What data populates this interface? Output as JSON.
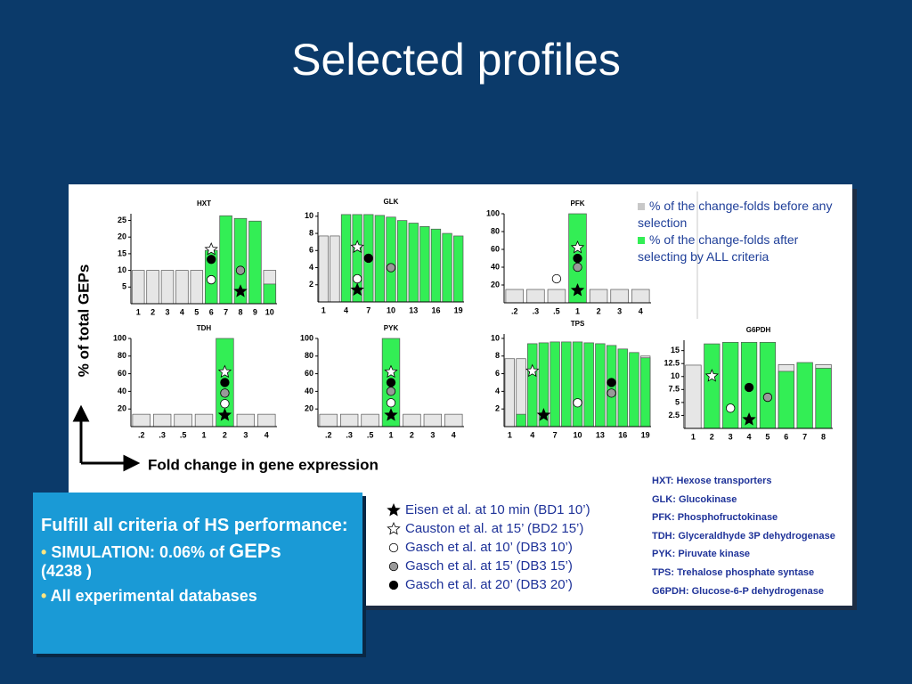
{
  "title": "Selected profiles",
  "y_axis_label": "% of total GEPs",
  "x_axis_label": "Fold change in gene expression",
  "bar_legend": [
    {
      "text": "% of the change-folds before any selection",
      "color": "#c8c8c8"
    },
    {
      "text": "% of the change-folds after selecting by ALL criteria",
      "color": "#33ee55"
    }
  ],
  "marker_legend": [
    {
      "text": "Eisen et al. at 10 min (BD1 10’)",
      "symbol": "star",
      "fill": "#000000"
    },
    {
      "text": "Causton et al. at 15’ (BD2 15’)",
      "symbol": "star",
      "fill": "#ffffff"
    },
    {
      "text": "Gasch et al. at 10’ (DB3 10’)",
      "symbol": "circle",
      "fill": "#ffffff"
    },
    {
      "text": "Gasch et al. at 15’ (DB3 15’)",
      "symbol": "circle",
      "fill": "#999999"
    },
    {
      "text": "Gasch et al. at 20’ (DB3 20’)",
      "symbol": "circle",
      "fill": "#000000"
    }
  ],
  "abbreviations": [
    "HXT: Hexose transporters",
    "GLK: Glucokinase",
    "PFK: Phosphofructokinase",
    "TDH: Glyceraldhyde 3P dehydrogenase",
    "PYK: Piruvate kinase",
    "TPS: Trehalose phosphate syntase",
    "G6PDH: Glucose-6-P dehydrogenase"
  ],
  "summary": {
    "heading": "Fulfill all criteria of HS performance:",
    "bullet": "•",
    "bullets": [
      [
        "SIMULATION: 0.06% of ",
        "GEPs",
        "(4238 )"
      ],
      [
        "All experimental databases"
      ]
    ]
  },
  "chart_data": [
    {
      "type": "bar",
      "title": "HXT",
      "categories": [
        "1",
        "2",
        "3",
        "4",
        "5",
        "6",
        "7",
        "8",
        "9",
        "10"
      ],
      "series": [
        {
          "values": [
            10,
            10,
            10,
            10,
            10,
            null,
            null,
            null,
            null,
            10
          ]
        },
        {
          "values": [
            null,
            null,
            null,
            null,
            null,
            16,
            26.4,
            25.6,
            24.8,
            5.9
          ]
        }
      ],
      "ylim": [
        0,
        27
      ],
      "yticks": [
        5,
        10,
        15,
        20,
        25
      ],
      "markers": [
        {
          "category": 7,
          "value": 3.7
        },
        {
          "category": 5,
          "value": 16.3
        },
        {
          "category": 5,
          "value": 7.2
        },
        {
          "category": 7,
          "value": 10
        },
        {
          "category": 5,
          "value": 13.3
        }
      ]
    },
    {
      "type": "bar",
      "title": "GLK",
      "categories": [
        "1",
        null,
        "4",
        null,
        "7",
        null,
        "10",
        null,
        "13",
        null,
        "16",
        null,
        "19"
      ],
      "series": [
        {
          "values": [
            7.7,
            7.7,
            null,
            null,
            null,
            null,
            null,
            null,
            null,
            null,
            null,
            null,
            null
          ]
        },
        {
          "values": [
            null,
            null,
            10.2,
            10.2,
            10.2,
            10.1,
            9.9,
            9.5,
            9.2,
            8.8,
            8.5,
            8.0,
            7.7
          ]
        }
      ],
      "ylim": [
        0,
        10.5
      ],
      "yticks": [
        2,
        4,
        6,
        8,
        10
      ],
      "markers": [
        {
          "category": 3,
          "value": 1.4
        },
        {
          "category": 3,
          "value": 6.4
        },
        {
          "category": 3,
          "value": 2.7
        },
        {
          "category": 6,
          "value": 4.0
        },
        {
          "category": 4,
          "value": 5.1
        }
      ]
    },
    {
      "type": "bar",
      "title": "PFK",
      "categories": [
        ".2",
        ".3",
        ".5",
        "1",
        "2",
        "3",
        "4"
      ],
      "series": [
        {
          "values": [
            15,
            15,
            15,
            null,
            15,
            15,
            15
          ]
        },
        {
          "values": [
            null,
            null,
            null,
            100,
            null,
            null,
            null
          ]
        }
      ],
      "ylim": [
        0,
        100
      ],
      "yticks": [
        20,
        40,
        60,
        80,
        100
      ],
      "markers": [
        {
          "category": 3,
          "value": 14
        },
        {
          "category": 3,
          "value": 62
        },
        {
          "category": 2,
          "value": 27
        },
        {
          "category": 3,
          "value": 40
        },
        {
          "category": 3,
          "value": 50
        }
      ]
    },
    {
      "type": "bar",
      "title": "TDH",
      "categories": [
        ".2",
        ".3",
        ".5",
        "1",
        "2",
        "3",
        "4"
      ],
      "series": [
        {
          "values": [
            14,
            14,
            14,
            14,
            null,
            14,
            14
          ]
        },
        {
          "values": [
            null,
            null,
            null,
            null,
            100,
            null,
            null
          ]
        }
      ],
      "ylim": [
        0,
        100
      ],
      "yticks": [
        20,
        40,
        60,
        80,
        100
      ],
      "markers": [
        {
          "category": 4,
          "value": 13
        },
        {
          "category": 4,
          "value": 62
        },
        {
          "category": 4,
          "value": 26
        },
        {
          "category": 4,
          "value": 38
        },
        {
          "category": 4,
          "value": 50
        }
      ]
    },
    {
      "type": "bar",
      "title": "PYK",
      "categories": [
        ".2",
        ".3",
        ".5",
        "1",
        "2",
        "3",
        "4"
      ],
      "series": [
        {
          "values": [
            14,
            14,
            14,
            null,
            14,
            14,
            14
          ]
        },
        {
          "values": [
            null,
            null,
            null,
            100,
            null,
            null,
            null
          ]
        }
      ],
      "ylim": [
        0,
        100
      ],
      "yticks": [
        20,
        40,
        60,
        80,
        100
      ],
      "markers": [
        {
          "category": 3,
          "value": 13
        },
        {
          "category": 3,
          "value": 62
        },
        {
          "category": 3,
          "value": 27
        },
        {
          "category": 3,
          "value": 40
        },
        {
          "category": 3,
          "value": 50
        }
      ]
    },
    {
      "type": "bar",
      "title": "TPS",
      "categories": [
        "1",
        null,
        "4",
        null,
        "7",
        null,
        "10",
        null,
        "13",
        null,
        "16",
        null,
        "19"
      ],
      "series": [
        {
          "values": [
            7.7,
            7.7,
            null,
            null,
            null,
            null,
            null,
            null,
            null,
            null,
            null,
            null,
            8.0
          ]
        },
        {
          "values": [
            null,
            1.4,
            9.4,
            9.5,
            9.6,
            9.6,
            9.6,
            9.5,
            9.4,
            9.2,
            8.8,
            8.4,
            7.8
          ]
        }
      ],
      "ylim": [
        0,
        10.5
      ],
      "yticks": [
        2,
        4,
        6,
        8,
        10
      ],
      "markers": [
        {
          "category": 3,
          "value": 1.3
        },
        {
          "category": 2,
          "value": 6.3
        },
        {
          "category": 6,
          "value": 2.7
        },
        {
          "category": 9,
          "value": 3.8
        },
        {
          "category": 9,
          "value": 5.0
        }
      ]
    },
    {
      "type": "bar",
      "title": "G6PDH",
      "categories": [
        "1",
        "2",
        "3",
        "4",
        "5",
        "6",
        "7",
        "8"
      ],
      "series": [
        {
          "values": [
            12.2,
            null,
            null,
            null,
            null,
            12.3,
            null,
            12.3
          ]
        },
        {
          "values": [
            null,
            16.3,
            16.6,
            16.6,
            16.6,
            11,
            12.7,
            11.6
          ]
        }
      ],
      "ylim": [
        0,
        17
      ],
      "yticks": [
        2.5,
        5,
        7.5,
        10,
        12.5,
        15
      ],
      "markers": [
        {
          "category": 3,
          "value": 1.7
        },
        {
          "category": 1,
          "value": 10.1
        },
        {
          "category": 2,
          "value": 3.9
        },
        {
          "category": 4,
          "value": 6.0
        },
        {
          "category": 3,
          "value": 7.9
        }
      ]
    }
  ]
}
